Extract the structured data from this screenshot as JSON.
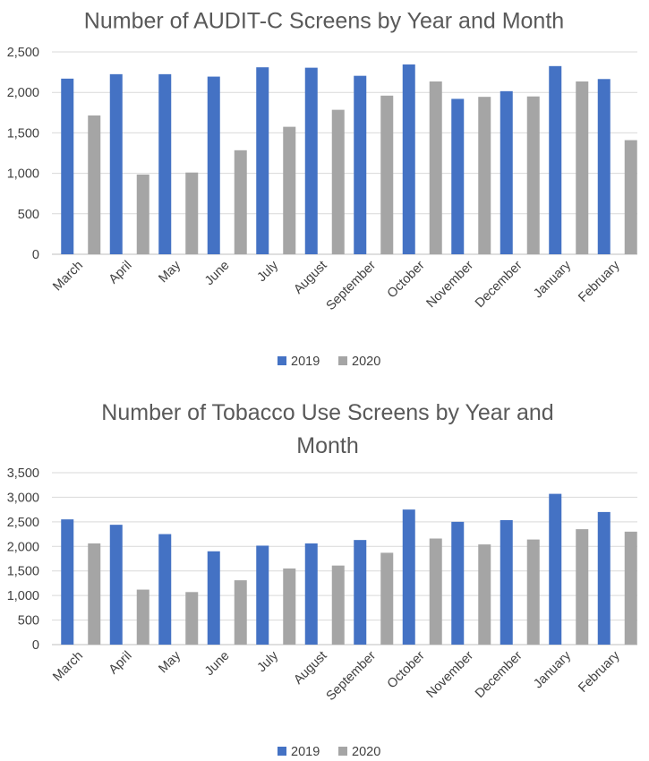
{
  "chart_data": [
    {
      "type": "bar",
      "title": "Number of AUDIT-C Screens by Year and Month",
      "categories": [
        "March",
        "April",
        "May",
        "June",
        "July",
        "August",
        "September",
        "October",
        "November",
        "December",
        "January",
        "February"
      ],
      "series": [
        {
          "name": "2019",
          "color": "#4472c4",
          "values": [
            2170,
            2225,
            2225,
            2195,
            2310,
            2305,
            2205,
            2345,
            1920,
            2015,
            2325,
            2165
          ]
        },
        {
          "name": "2020",
          "color": "#a5a5a5",
          "values": [
            1715,
            985,
            1010,
            1285,
            1575,
            1785,
            1960,
            2135,
            1945,
            1950,
            2135,
            1410
          ]
        }
      ],
      "yticks": [
        "0",
        "500",
        "1,000",
        "1,500",
        "2,000",
        "2,500"
      ],
      "ylim": [
        0,
        2500
      ],
      "grid": true,
      "legend": "bottom"
    },
    {
      "type": "bar",
      "title": "Number of Tobacco Use Screens by Year and Month",
      "categories": [
        "March",
        "April",
        "May",
        "June",
        "July",
        "August",
        "September",
        "October",
        "November",
        "December",
        "January",
        "February"
      ],
      "series": [
        {
          "name": "2019",
          "color": "#4472c4",
          "values": [
            2550,
            2440,
            2250,
            1900,
            2015,
            2060,
            2130,
            2750,
            2500,
            2535,
            3070,
            2700
          ]
        },
        {
          "name": "2020",
          "color": "#a5a5a5",
          "values": [
            2060,
            1120,
            1070,
            1310,
            1550,
            1610,
            1870,
            2160,
            2040,
            2140,
            2350,
            2300
          ]
        }
      ],
      "yticks": [
        "0",
        "500",
        "1,000",
        "1,500",
        "2,000",
        "2,500",
        "3,000",
        "3,500"
      ],
      "ylim": [
        0,
        3500
      ],
      "grid": true,
      "legend": "bottom"
    }
  ]
}
